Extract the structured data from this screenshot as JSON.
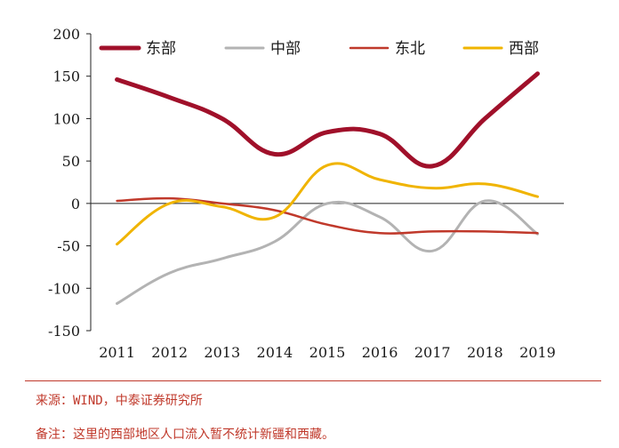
{
  "chart_data": {
    "type": "line",
    "title": "",
    "xlabel": "",
    "ylabel": "",
    "categories": [
      "2011",
      "2012",
      "2013",
      "2014",
      "2015",
      "2016",
      "2017",
      "2018",
      "2019"
    ],
    "ylim": [
      -150,
      200
    ],
    "yticks": [
      -150,
      -100,
      -50,
      0,
      50,
      100,
      150,
      200
    ],
    "grid": false,
    "legend_position": "top",
    "series": [
      {
        "name": "东部",
        "color": "#a0102a",
        "values": [
          146,
          125,
          100,
          58,
          84,
          82,
          44,
          100,
          153
        ]
      },
      {
        "name": "中部",
        "color": "#b3b3b3",
        "values": [
          -118,
          -82,
          -65,
          -45,
          0,
          -16,
          -56,
          3,
          -36
        ]
      },
      {
        "name": "东北",
        "color": "#c0392b",
        "values": [
          3,
          6,
          0,
          -8,
          -25,
          -35,
          -33,
          -33,
          -35
        ]
      },
      {
        "name": "西部",
        "color": "#f0b400",
        "values": [
          -48,
          0,
          -4,
          -16,
          45,
          28,
          18,
          23,
          8
        ]
      }
    ]
  },
  "footer": {
    "source": "来源：WIND，中泰证券研究所",
    "remark": "备注：这里的西部地区人口流入暂不统计新疆和西藏。"
  }
}
